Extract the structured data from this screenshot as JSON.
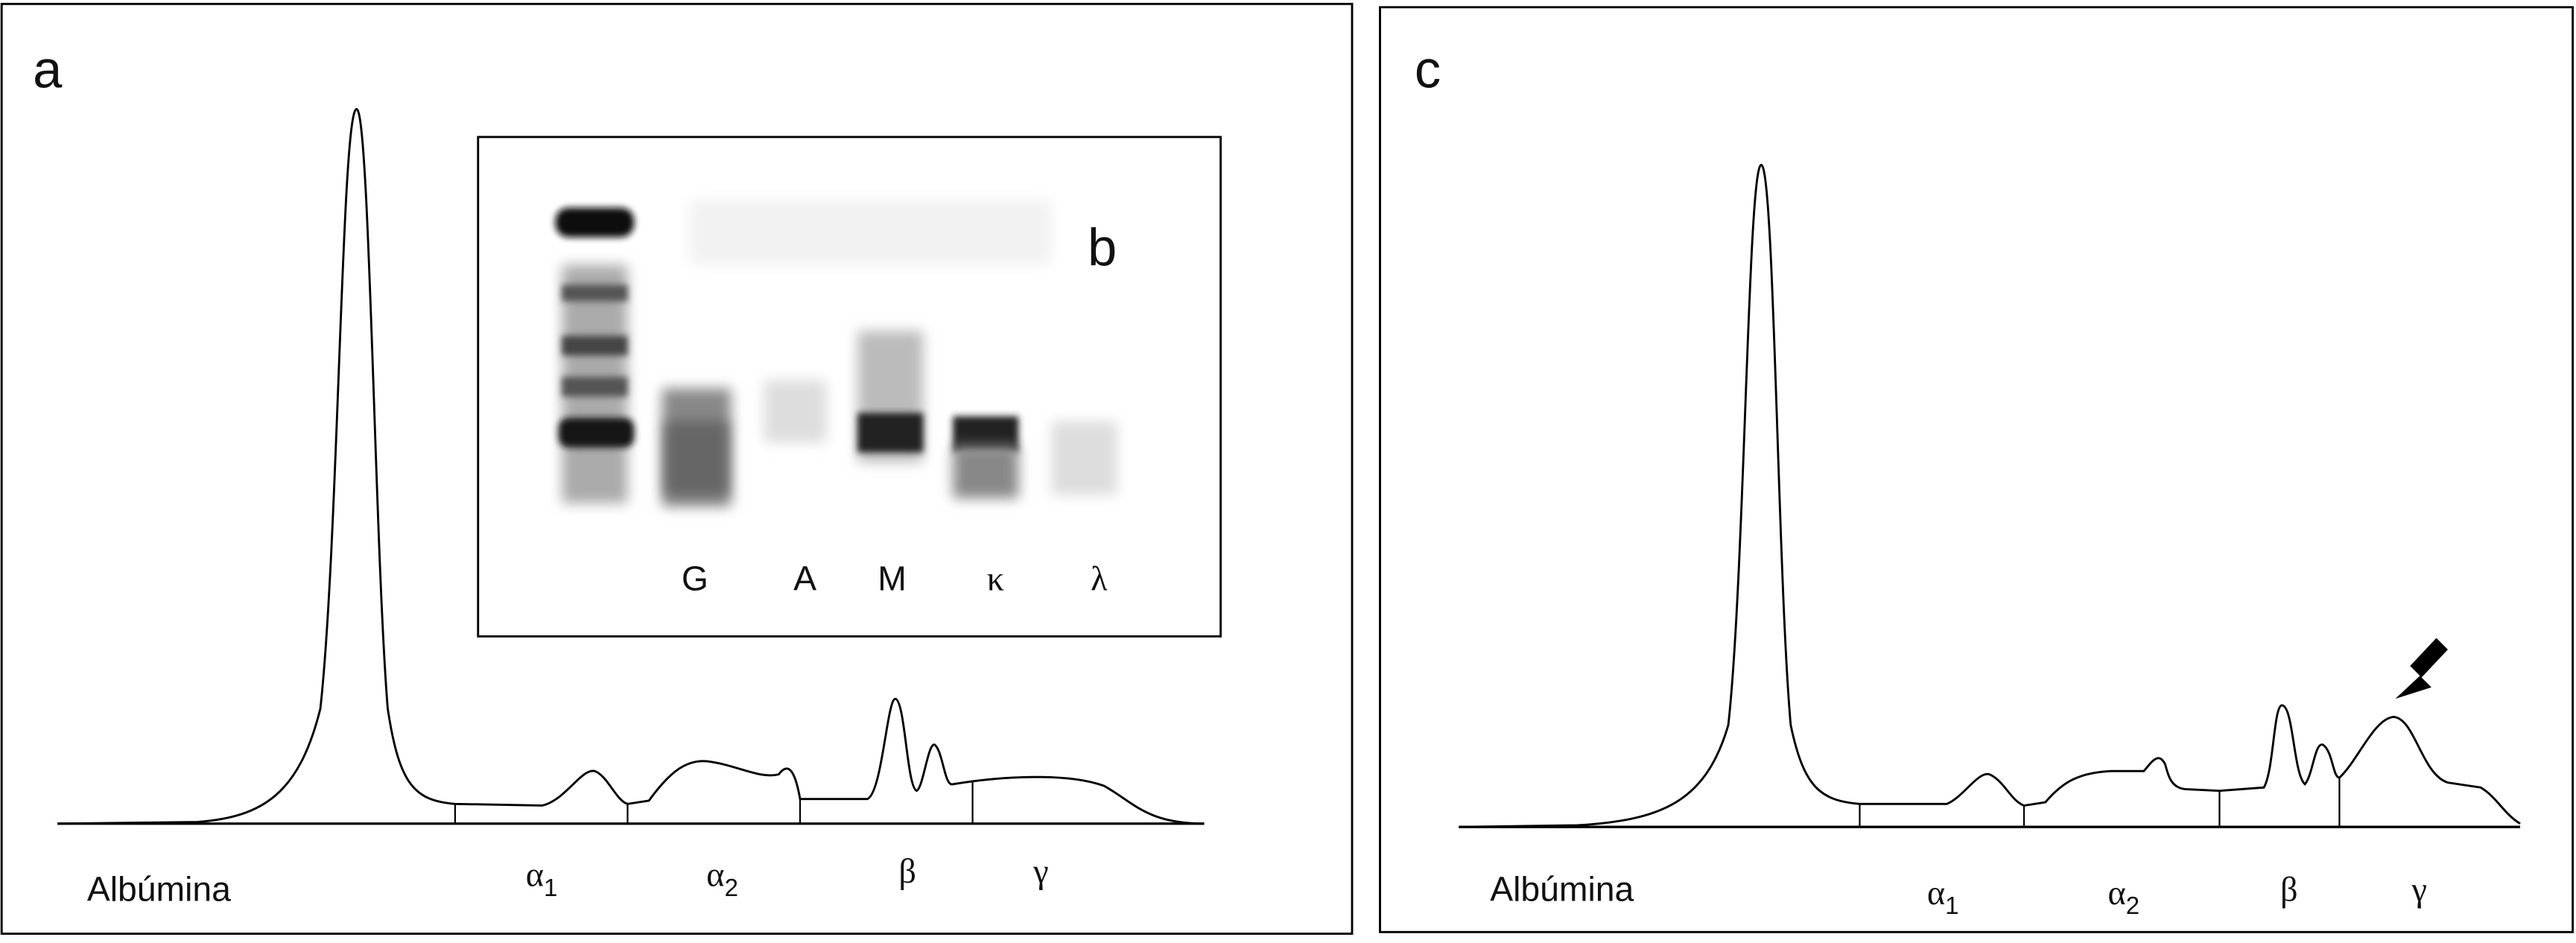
{
  "panels": [
    {
      "label": "a",
      "albumin_label": "Albúmina",
      "fractions": [
        {
          "symbol": "α",
          "subscript": "1"
        },
        {
          "symbol": "α",
          "subscript": "2"
        },
        {
          "symbol": "β"
        },
        {
          "symbol": "γ"
        }
      ]
    },
    {
      "label": "c",
      "albumin_label": "Albúmina",
      "fractions": [
        {
          "symbol": "α",
          "subscript": "1"
        },
        {
          "symbol": "α",
          "subscript": "2"
        },
        {
          "symbol": "β"
        },
        {
          "symbol": "γ"
        }
      ]
    }
  ],
  "inset": {
    "label": "b",
    "lanes": [
      "G",
      "A",
      "M",
      "κ",
      "λ"
    ]
  }
}
